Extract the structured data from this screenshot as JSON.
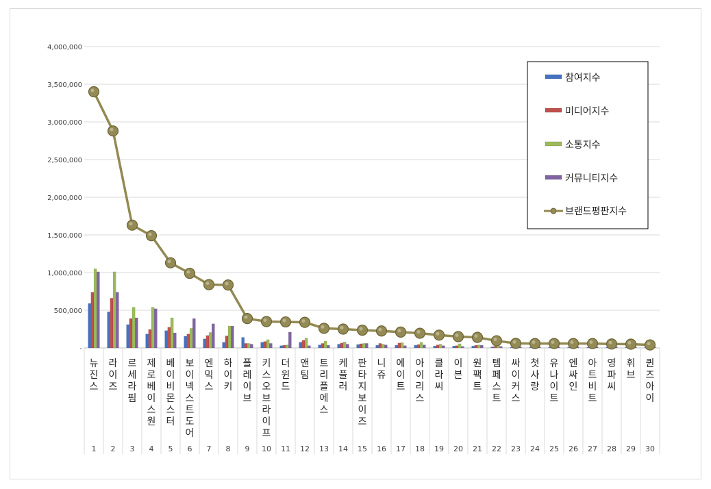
{
  "chart_data": {
    "type": "bar",
    "title": "",
    "xlabel": "",
    "ylabel": "",
    "ylim": [
      0,
      4000000
    ],
    "yticks": [
      0,
      500000,
      1000000,
      1500000,
      2000000,
      2500000,
      3000000,
      3500000,
      4000000
    ],
    "ytick_labels": [
      "-",
      "500,000",
      "1,000,000",
      "1,500,000",
      "2,000,000",
      "2,500,000",
      "3,000,000",
      "3,500,000",
      "4,000,000"
    ],
    "grid": true,
    "legend_placement": "top-right",
    "ranks": [
      "1",
      "2",
      "3",
      "4",
      "5",
      "6",
      "7",
      "8",
      "9",
      "10",
      "11",
      "12",
      "13",
      "14",
      "15",
      "16",
      "17",
      "18",
      "19",
      "20",
      "21",
      "22",
      "23",
      "24",
      "25",
      "26",
      "27",
      "28",
      "29",
      "30"
    ],
    "categories": [
      "뉴진스",
      "라이즈",
      "르세라핌",
      "제로베이스원",
      "베이비몬스터",
      "보이넥스트도어",
      "엔믹스",
      "하이키",
      "플레이브",
      "키스오브라이프",
      "더윈드",
      "앤팀",
      "트리플에스",
      "케플러",
      "판타지보이즈",
      "니쥬",
      "에이트",
      "아이리스",
      "클라씨",
      "이븐",
      "원팩트",
      "템페스트",
      "싸이커스",
      "첫사랑",
      "유나이트",
      "엔싸인",
      "아트비트",
      "영파씨",
      "휘브",
      "퀸즈아이"
    ],
    "series": [
      {
        "name": "참여지수",
        "type": "bar",
        "color": "#4472c4",
        "values": [
          590000,
          480000,
          310000,
          185000,
          230000,
          155000,
          120000,
          75000,
          140000,
          75000,
          30000,
          75000,
          40000,
          50000,
          45000,
          35000,
          35000,
          35000,
          25000,
          25000,
          25000,
          15000,
          8000,
          8000,
          8000,
          8000,
          8000,
          8000,
          8000,
          5000
        ]
      },
      {
        "name": "미디어지수",
        "type": "bar",
        "color": "#c0504d",
        "values": [
          740000,
          660000,
          390000,
          245000,
          275000,
          185000,
          165000,
          160000,
          60000,
          85000,
          35000,
          100000,
          60000,
          65000,
          55000,
          60000,
          65000,
          45000,
          40000,
          30000,
          35000,
          20000,
          8000,
          8000,
          8000,
          8000,
          8000,
          8000,
          8000,
          5000
        ]
      },
      {
        "name": "소통지수",
        "type": "bar",
        "color": "#9bbb59",
        "values": [
          1050000,
          1010000,
          540000,
          540000,
          400000,
          260000,
          205000,
          290000,
          60000,
          110000,
          40000,
          130000,
          90000,
          80000,
          60000,
          50000,
          70000,
          75000,
          50000,
          55000,
          40000,
          30000,
          15000,
          15000,
          15000,
          15000,
          15000,
          15000,
          15000,
          10000
        ]
      },
      {
        "name": "커뮤니티지수",
        "type": "bar",
        "color": "#8064a2",
        "values": [
          1010000,
          740000,
          400000,
          520000,
          200000,
          390000,
          320000,
          290000,
          50000,
          60000,
          210000,
          30000,
          35000,
          50000,
          60000,
          40000,
          30000,
          40000,
          30000,
          20000,
          35000,
          20000,
          15000,
          15000,
          15000,
          15000,
          15000,
          15000,
          15000,
          10000
        ]
      },
      {
        "name": "브랜드평판지수",
        "type": "line",
        "color": "#938953",
        "values": [
          3400000,
          2880000,
          1630000,
          1490000,
          1130000,
          990000,
          840000,
          835000,
          390000,
          350000,
          345000,
          340000,
          260000,
          250000,
          235000,
          225000,
          210000,
          195000,
          170000,
          150000,
          140000,
          95000,
          60000,
          58000,
          58000,
          58000,
          58000,
          52000,
          50000,
          40000
        ]
      }
    ]
  }
}
